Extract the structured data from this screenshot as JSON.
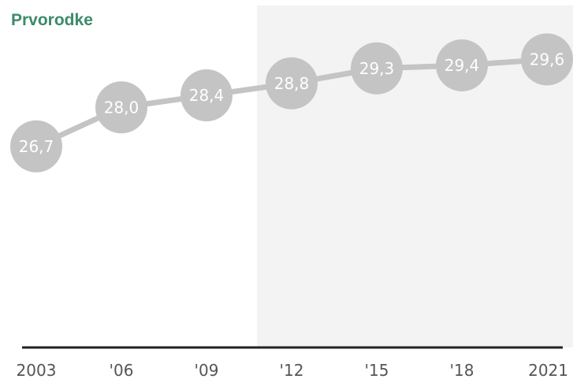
{
  "chart_data": {
    "type": "line",
    "title": "Prvorodke",
    "xlabel": "",
    "ylabel": "",
    "categories": [
      "2003",
      "'06",
      "'09",
      "'12",
      "'15",
      "'18",
      "2021"
    ],
    "values": [
      26.7,
      28.0,
      28.4,
      28.8,
      29.3,
      29.4,
      29.6
    ],
    "data_labels": [
      "26,7",
      "28,0",
      "28,4",
      "28,8",
      "29,3",
      "29,4",
      "29,6"
    ],
    "ylim": [
      20,
      31
    ],
    "highlight_from": "'12",
    "grid": false,
    "legend": "none",
    "colors": {
      "title": "#3c8a6b",
      "marker": "#c4c4c4",
      "line": "#c4c4c4",
      "highlight_band": "#f3f3f3",
      "axis": "#222222",
      "tick_text": "#555555",
      "label_text": "#ffffff"
    }
  }
}
